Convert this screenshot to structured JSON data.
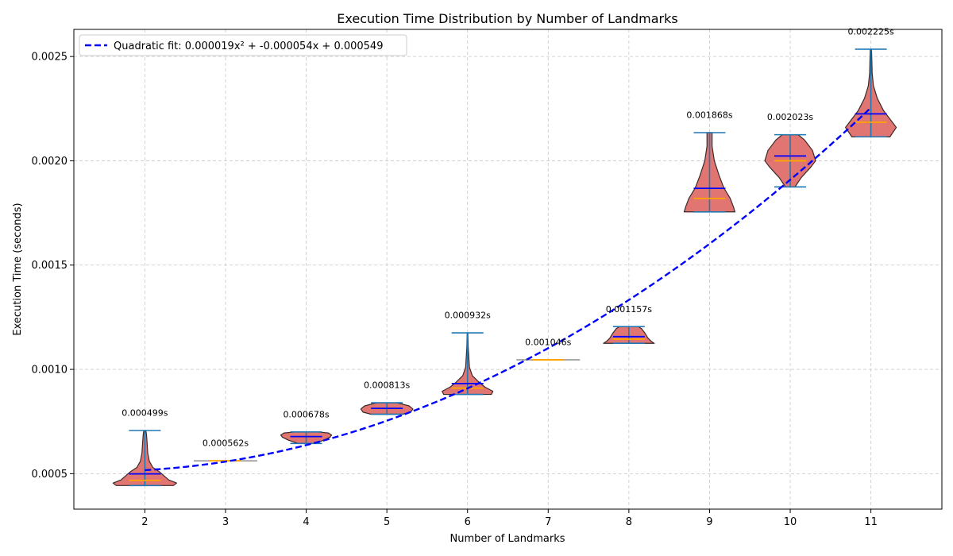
{
  "chart_data": {
    "type": "violin",
    "title": "Execution Time Distribution by Number of Landmarks",
    "xlabel": "Number of Landmarks",
    "ylabel": "Execution Time (seconds)",
    "ylim": [
      0.00033,
      0.00263
    ],
    "xlim": [
      1.12,
      11.88
    ],
    "yticks": [
      0.0005,
      0.001,
      0.0015,
      0.002,
      0.0025
    ],
    "ytick_labels": [
      "0.0005",
      "0.0010",
      "0.0015",
      "0.0020",
      "0.0025"
    ],
    "grid": true,
    "legend_position": "top-left",
    "legend_label": "Quadratic fit: 0.000019x² + -0.000054x + 0.000549",
    "fit_coefficients": {
      "a": 1.9e-05,
      "b": -5.4e-05,
      "c": 0.000549
    },
    "fit_range": [
      2,
      11
    ],
    "colors": {
      "violin_fill": "#d9534f",
      "violin_edge": "#3a2a2a",
      "extrema": "#1f77b4",
      "mean": "#0000ff",
      "median": "#ffa500",
      "fit": "#0000ff"
    },
    "groups": [
      {
        "x": 2,
        "label": "2",
        "min": 0.000443,
        "max": 0.000707,
        "mean": 0.000499,
        "median": 0.000468,
        "mean_label": "0.000499s",
        "profile": [
          [
            0.000443,
            0.9
          ],
          [
            0.000455,
            1.0
          ],
          [
            0.00047,
            0.75
          ],
          [
            0.00049,
            0.6
          ],
          [
            0.00051,
            0.45
          ],
          [
            0.00053,
            0.25
          ],
          [
            0.00056,
            0.14
          ],
          [
            0.0006,
            0.09
          ],
          [
            0.00065,
            0.07
          ],
          [
            0.00069,
            0.05
          ],
          [
            0.000707,
            0.03
          ]
        ]
      },
      {
        "x": 3,
        "label": "3",
        "min": 0.000562,
        "max": 0.000562,
        "mean": 0.000562,
        "median": 0.000562,
        "mean_label": "0.000562s",
        "single": true
      },
      {
        "x": 4,
        "label": "4",
        "min": 0.000645,
        "max": 0.0007,
        "mean": 0.000678,
        "median": 0.000678,
        "mean_label": "0.000678s",
        "profile": [
          [
            0.000645,
            0.25
          ],
          [
            0.00066,
            0.55
          ],
          [
            0.000675,
            0.75
          ],
          [
            0.000685,
            0.8
          ],
          [
            0.000695,
            0.7
          ],
          [
            0.0007,
            0.35
          ]
        ]
      },
      {
        "x": 5,
        "label": "5",
        "min": 0.000785,
        "max": 0.00084,
        "mean": 0.000813,
        "median": 0.000813,
        "mean_label": "0.000813s",
        "profile": [
          [
            0.000785,
            0.5
          ],
          [
            0.000795,
            0.75
          ],
          [
            0.00081,
            0.82
          ],
          [
            0.000825,
            0.7
          ],
          [
            0.000835,
            0.45
          ],
          [
            0.00084,
            0.3
          ]
        ]
      },
      {
        "x": 6,
        "label": "6",
        "min": 0.00088,
        "max": 0.001175,
        "mean": 0.000932,
        "median": 0.00091,
        "mean_label": "0.000932s",
        "profile": [
          [
            0.00088,
            0.75
          ],
          [
            0.000895,
            0.8
          ],
          [
            0.000915,
            0.55
          ],
          [
            0.00094,
            0.35
          ],
          [
            0.00097,
            0.15
          ],
          [
            0.00101,
            0.06
          ],
          [
            0.00106,
            0.04
          ],
          [
            0.00111,
            0.02
          ],
          [
            0.001175,
            0.01
          ]
        ]
      },
      {
        "x": 7,
        "label": "7",
        "min": 0.001046,
        "max": 0.001046,
        "mean": 0.001046,
        "median": 0.001046,
        "mean_label": "0.001046s",
        "single": true
      },
      {
        "x": 8,
        "label": "8",
        "min": 0.001125,
        "max": 0.001205,
        "mean": 0.001157,
        "median": 0.001145,
        "mean_label": "0.001157s",
        "profile": [
          [
            0.001125,
            0.8
          ],
          [
            0.001135,
            0.7
          ],
          [
            0.00115,
            0.6
          ],
          [
            0.001175,
            0.5
          ],
          [
            0.001195,
            0.4
          ],
          [
            0.001205,
            0.3
          ]
        ]
      },
      {
        "x": 9,
        "label": "9",
        "min": 0.001755,
        "max": 0.002135,
        "mean": 0.001868,
        "median": 0.00182,
        "mean_label": "0.001868s",
        "profile": [
          [
            0.001755,
            0.8
          ],
          [
            0.00178,
            0.75
          ],
          [
            0.00182,
            0.65
          ],
          [
            0.00187,
            0.45
          ],
          [
            0.00193,
            0.3
          ],
          [
            0.002,
            0.15
          ],
          [
            0.00207,
            0.08
          ],
          [
            0.002135,
            0.08
          ]
        ]
      },
      {
        "x": 10,
        "label": "10",
        "min": 0.001875,
        "max": 0.002125,
        "mean": 0.002023,
        "median": 0.002,
        "mean_label": "0.002023s",
        "profile": [
          [
            0.001875,
            0.15
          ],
          [
            0.00192,
            0.35
          ],
          [
            0.00197,
            0.65
          ],
          [
            0.002,
            0.8
          ],
          [
            0.00205,
            0.7
          ],
          [
            0.0021,
            0.45
          ],
          [
            0.002125,
            0.25
          ]
        ]
      },
      {
        "x": 11,
        "label": "11",
        "min": 0.002115,
        "max": 0.002535,
        "mean": 0.002225,
        "median": 0.002185,
        "mean_label": "0.002225s",
        "profile": [
          [
            0.002115,
            0.6
          ],
          [
            0.00216,
            0.8
          ],
          [
            0.0022,
            0.6
          ],
          [
            0.00224,
            0.4
          ],
          [
            0.0023,
            0.2
          ],
          [
            0.00236,
            0.08
          ],
          [
            0.00242,
            0.04
          ],
          [
            0.00248,
            0.03
          ],
          [
            0.002535,
            0.02
          ]
        ]
      }
    ]
  }
}
